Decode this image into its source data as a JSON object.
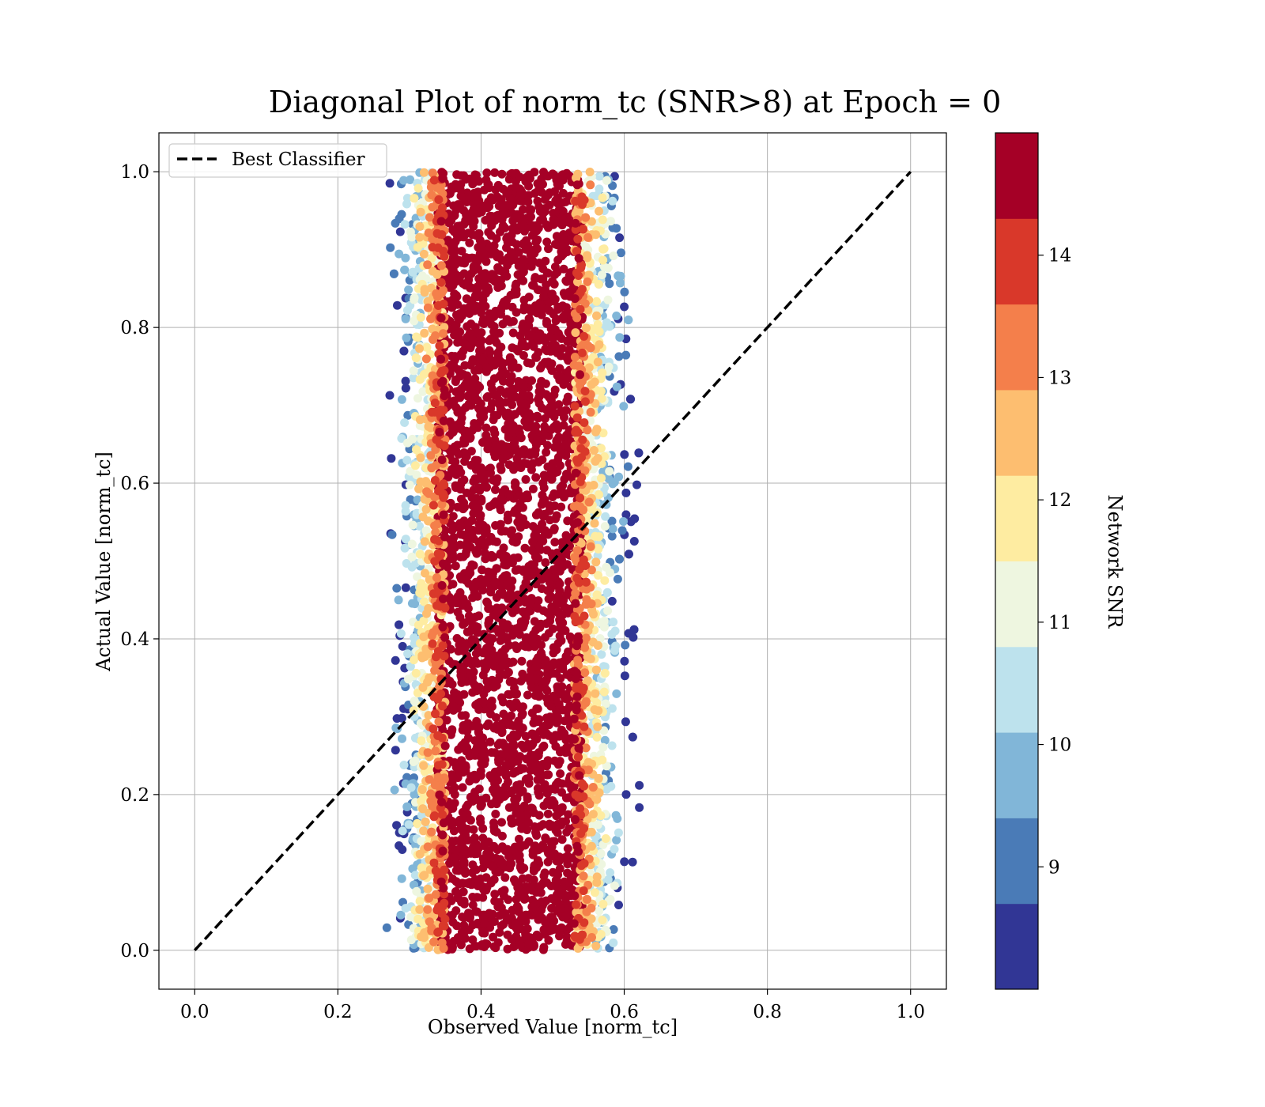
{
  "chart_data": {
    "type": "scatter",
    "title": "Diagonal Plot of norm_tc (SNR>8) at Epoch = 0",
    "xlabel": "Observed Value [norm_tc]",
    "ylabel": "Actual Value [norm_tc]",
    "xlim": [
      -0.05,
      1.05
    ],
    "ylim": [
      -0.05,
      1.05
    ],
    "xticks": [
      "0.0",
      "0.2",
      "0.4",
      "0.6",
      "0.8",
      "1.0"
    ],
    "yticks": [
      "0.0",
      "0.2",
      "0.4",
      "0.6",
      "0.8",
      "1.0"
    ],
    "grid": true,
    "legend": {
      "position": "top-left",
      "entries": [
        "Best Classifier"
      ]
    },
    "reference_line": {
      "name": "Best Classifier",
      "style": "dashed",
      "color": "#000000",
      "x": [
        0.0,
        1.0
      ],
      "y": [
        0.0,
        1.0
      ]
    },
    "scatter_summary": {
      "x_center": 0.44,
      "x_core_range": [
        0.35,
        0.53
      ],
      "x_full_range": [
        0.26,
        0.63
      ],
      "y_range": [
        0.0,
        1.0
      ]
    },
    "colorbar": {
      "label": "Network SNR",
      "ticks": [
        "9",
        "10",
        "11",
        "12",
        "13",
        "14"
      ],
      "range": [
        8.0,
        15.0
      ],
      "bins": [
        {
          "from": 8.0,
          "to": 8.7,
          "color": "#313695"
        },
        {
          "from": 8.7,
          "to": 9.4,
          "color": "#4a7bb7"
        },
        {
          "from": 9.4,
          "to": 10.1,
          "color": "#81b6d8"
        },
        {
          "from": 10.1,
          "to": 10.8,
          "color": "#bde2ed"
        },
        {
          "from": 10.8,
          "to": 11.5,
          "color": "#eef6e0"
        },
        {
          "from": 11.5,
          "to": 12.2,
          "color": "#feeca1"
        },
        {
          "from": 12.2,
          "to": 12.9,
          "color": "#fdbe70"
        },
        {
          "from": 12.9,
          "to": 13.6,
          "color": "#f47f4b"
        },
        {
          "from": 13.6,
          "to": 14.3,
          "color": "#d9382a"
        },
        {
          "from": 14.3,
          "to": 15.0,
          "color": "#a50026"
        }
      ]
    }
  }
}
